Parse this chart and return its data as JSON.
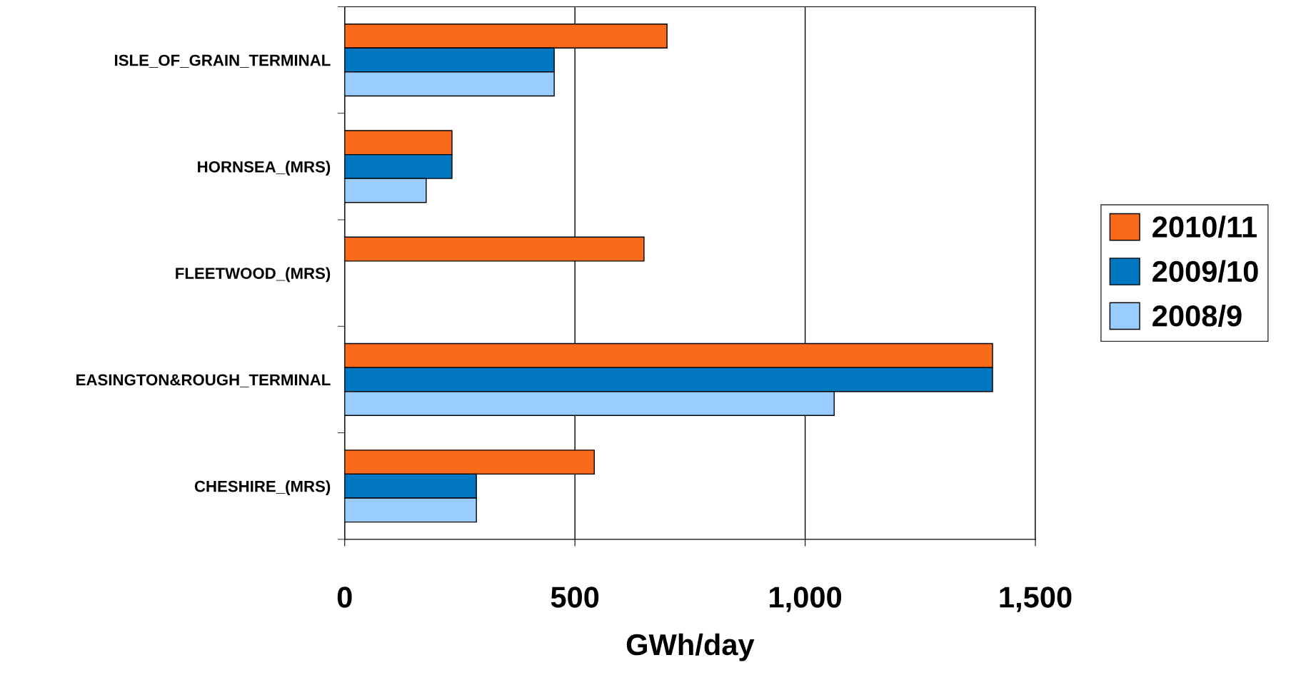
{
  "chart_data": {
    "type": "bar",
    "orientation": "horizontal",
    "categories": [
      "ISLE_OF_GRAIN_TERMINAL",
      "HORNSEA_(MRS)",
      "FLEETWOOD_(MRS)",
      "EASINGTON&ROUGH_TERMINAL",
      "CHESHIRE_(MRS)"
    ],
    "series": [
      {
        "name": "2010/11",
        "color": "#f96a1b",
        "values": [
          700,
          233,
          650,
          1407,
          542
        ]
      },
      {
        "name": "2009/10",
        "color": "#0077c0",
        "values": [
          455,
          233,
          null,
          1407,
          286
        ]
      },
      {
        "name": "2008/9",
        "color": "#99ccff",
        "values": [
          455,
          177,
          null,
          1063,
          286
        ]
      }
    ],
    "xlabel": "GWh/day",
    "xlim": [
      0,
      1500
    ],
    "xticks": [
      0,
      500,
      {
        "value": 1000,
        "label": "1,000"
      },
      {
        "value": 1500,
        "label": "1,500"
      }
    ],
    "grid": "x",
    "legend": "right"
  }
}
